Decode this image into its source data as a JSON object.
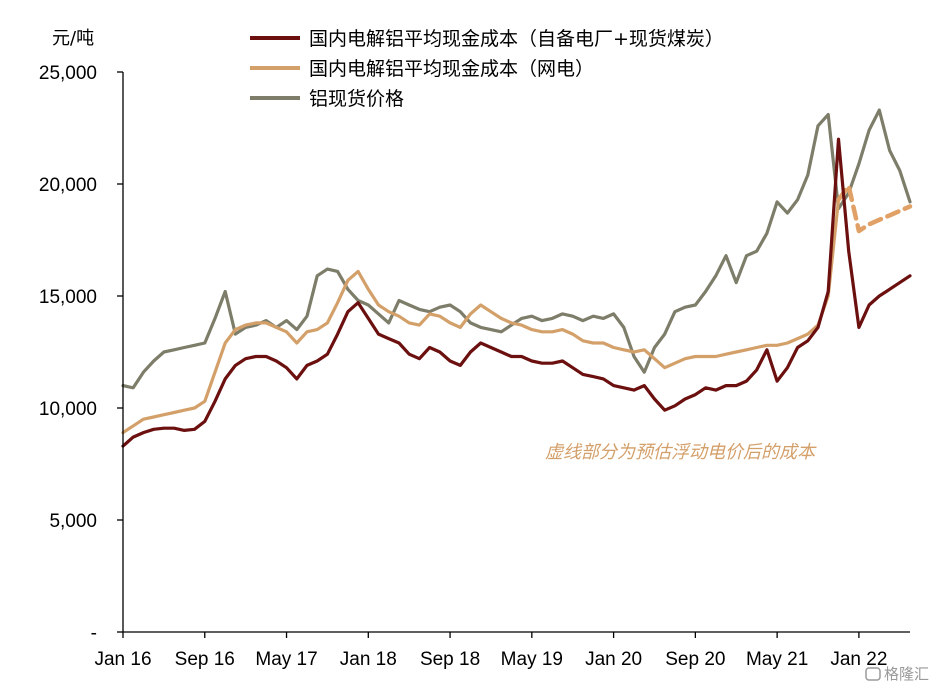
{
  "chart_data": {
    "type": "line",
    "ylabel": "元/吨",
    "ylim": [
      0,
      25000
    ],
    "yticks": [
      {
        "value": 0,
        "label": "-"
      },
      {
        "value": 5000,
        "label": "5,000"
      },
      {
        "value": 10000,
        "label": "10,000"
      },
      {
        "value": 15000,
        "label": "15,000"
      },
      {
        "value": 20000,
        "label": "20,000"
      },
      {
        "value": 25000,
        "label": "25,000"
      }
    ],
    "xrange": [
      "2016-01",
      "2022-06"
    ],
    "xticks": [
      {
        "date": "2016-01",
        "label": "Jan 16"
      },
      {
        "date": "2016-09",
        "label": "Sep 16"
      },
      {
        "date": "2017-05",
        "label": "May 17"
      },
      {
        "date": "2018-01",
        "label": "Jan 18"
      },
      {
        "date": "2018-09",
        "label": "Sep 18"
      },
      {
        "date": "2019-05",
        "label": "May 19"
      },
      {
        "date": "2020-01",
        "label": "Jan 20"
      },
      {
        "date": "2020-09",
        "label": "Sep 20"
      },
      {
        "date": "2021-05",
        "label": "May 21"
      },
      {
        "date": "2022-01",
        "label": "Jan 22"
      }
    ],
    "legend_position": "top",
    "grid": false,
    "annotation": "虚线部分为预估浮动电价后的成本",
    "series": [
      {
        "name": "国内电解铝平均现金成本（自备电厂+现货煤炭）",
        "color": "#6b0f0f",
        "style": "solid",
        "points": [
          [
            "2016-01",
            8300
          ],
          [
            "2016-02",
            8700
          ],
          [
            "2016-03",
            8900
          ],
          [
            "2016-04",
            9050
          ],
          [
            "2016-05",
            9100
          ],
          [
            "2016-06",
            9100
          ],
          [
            "2016-07",
            9000
          ],
          [
            "2016-08",
            9050
          ],
          [
            "2016-09",
            9400
          ],
          [
            "2016-10",
            10300
          ],
          [
            "2016-11",
            11300
          ],
          [
            "2016-12",
            11900
          ],
          [
            "2017-01",
            12200
          ],
          [
            "2017-02",
            12300
          ],
          [
            "2017-03",
            12300
          ],
          [
            "2017-04",
            12100
          ],
          [
            "2017-05",
            11800
          ],
          [
            "2017-06",
            11300
          ],
          [
            "2017-07",
            11900
          ],
          [
            "2017-08",
            12100
          ],
          [
            "2017-09",
            12400
          ],
          [
            "2017-10",
            13300
          ],
          [
            "2017-11",
            14300
          ],
          [
            "2017-12",
            14700
          ],
          [
            "2018-01",
            14000
          ],
          [
            "2018-02",
            13300
          ],
          [
            "2018-03",
            13100
          ],
          [
            "2018-04",
            12900
          ],
          [
            "2018-05",
            12400
          ],
          [
            "2018-06",
            12200
          ],
          [
            "2018-07",
            12700
          ],
          [
            "2018-08",
            12500
          ],
          [
            "2018-09",
            12100
          ],
          [
            "2018-10",
            11900
          ],
          [
            "2018-11",
            12500
          ],
          [
            "2018-12",
            12900
          ],
          [
            "2019-01",
            12700
          ],
          [
            "2019-02",
            12500
          ],
          [
            "2019-03",
            12300
          ],
          [
            "2019-04",
            12300
          ],
          [
            "2019-05",
            12100
          ],
          [
            "2019-06",
            12000
          ],
          [
            "2019-07",
            12000
          ],
          [
            "2019-08",
            12100
          ],
          [
            "2019-09",
            11800
          ],
          [
            "2019-10",
            11500
          ],
          [
            "2019-11",
            11400
          ],
          [
            "2019-12",
            11300
          ],
          [
            "2020-01",
            11000
          ],
          [
            "2020-02",
            10900
          ],
          [
            "2020-03",
            10800
          ],
          [
            "2020-04",
            11000
          ],
          [
            "2020-05",
            10400
          ],
          [
            "2020-06",
            9900
          ],
          [
            "2020-07",
            10100
          ],
          [
            "2020-08",
            10400
          ],
          [
            "2020-09",
            10600
          ],
          [
            "2020-10",
            10900
          ],
          [
            "2020-11",
            10800
          ],
          [
            "2020-12",
            11000
          ],
          [
            "2021-01",
            11000
          ],
          [
            "2021-02",
            11200
          ],
          [
            "2021-03",
            11700
          ],
          [
            "2021-04",
            12600
          ],
          [
            "2021-05",
            11200
          ],
          [
            "2021-06",
            11800
          ],
          [
            "2021-07",
            12700
          ],
          [
            "2021-08",
            13000
          ],
          [
            "2021-09",
            13600
          ],
          [
            "2021-10",
            15200
          ],
          [
            "2021-11",
            22000
          ],
          [
            "2021-12",
            17000
          ],
          [
            "2022-01",
            13600
          ],
          [
            "2022-02",
            14600
          ],
          [
            "2022-03",
            15000
          ],
          [
            "2022-04",
            15300
          ],
          [
            "2022-05",
            15600
          ],
          [
            "2022-06",
            15900
          ]
        ]
      },
      {
        "name": "国内电解铝平均现金成本（网电）",
        "color": "#d4a06a",
        "style": "solid",
        "points": [
          [
            "2016-01",
            8900
          ],
          [
            "2016-02",
            9200
          ],
          [
            "2016-03",
            9500
          ],
          [
            "2016-04",
            9600
          ],
          [
            "2016-05",
            9700
          ],
          [
            "2016-06",
            9800
          ],
          [
            "2016-07",
            9900
          ],
          [
            "2016-08",
            10000
          ],
          [
            "2016-09",
            10300
          ],
          [
            "2016-10",
            11600
          ],
          [
            "2016-11",
            12900
          ],
          [
            "2016-12",
            13500
          ],
          [
            "2017-01",
            13700
          ],
          [
            "2017-02",
            13800
          ],
          [
            "2017-03",
            13800
          ],
          [
            "2017-04",
            13600
          ],
          [
            "2017-05",
            13400
          ],
          [
            "2017-06",
            12900
          ],
          [
            "2017-07",
            13400
          ],
          [
            "2017-08",
            13500
          ],
          [
            "2017-09",
            13800
          ],
          [
            "2017-10",
            14700
          ],
          [
            "2017-11",
            15700
          ],
          [
            "2017-12",
            16100
          ],
          [
            "2018-01",
            15300
          ],
          [
            "2018-02",
            14600
          ],
          [
            "2018-03",
            14300
          ],
          [
            "2018-04",
            14100
          ],
          [
            "2018-05",
            13800
          ],
          [
            "2018-06",
            13700
          ],
          [
            "2018-07",
            14200
          ],
          [
            "2018-08",
            14100
          ],
          [
            "2018-09",
            13800
          ],
          [
            "2018-10",
            13600
          ],
          [
            "2018-11",
            14200
          ],
          [
            "2018-12",
            14600
          ],
          [
            "2019-01",
            14300
          ],
          [
            "2019-02",
            14000
          ],
          [
            "2019-03",
            13800
          ],
          [
            "2019-04",
            13700
          ],
          [
            "2019-05",
            13500
          ],
          [
            "2019-06",
            13400
          ],
          [
            "2019-07",
            13400
          ],
          [
            "2019-08",
            13500
          ],
          [
            "2019-09",
            13300
          ],
          [
            "2019-10",
            13000
          ],
          [
            "2019-11",
            12900
          ],
          [
            "2019-12",
            12900
          ],
          [
            "2020-01",
            12700
          ],
          [
            "2020-02",
            12600
          ],
          [
            "2020-03",
            12500
          ],
          [
            "2020-04",
            12600
          ],
          [
            "2020-05",
            12200
          ],
          [
            "2020-06",
            11800
          ],
          [
            "2020-07",
            12000
          ],
          [
            "2020-08",
            12200
          ],
          [
            "2020-09",
            12300
          ],
          [
            "2020-10",
            12300
          ],
          [
            "2020-11",
            12300
          ],
          [
            "2020-12",
            12400
          ],
          [
            "2021-01",
            12500
          ],
          [
            "2021-02",
            12600
          ],
          [
            "2021-03",
            12700
          ],
          [
            "2021-04",
            12800
          ],
          [
            "2021-05",
            12800
          ],
          [
            "2021-06",
            12900
          ],
          [
            "2021-07",
            13100
          ],
          [
            "2021-08",
            13300
          ],
          [
            "2021-09",
            13700
          ],
          [
            "2021-10",
            15000
          ],
          [
            "2021-11",
            19300
          ]
        ]
      },
      {
        "name": "",
        "color": "#e0a066",
        "style": "dashed",
        "points": [
          [
            "2021-11",
            19300
          ],
          [
            "2021-12",
            19900
          ],
          [
            "2022-01",
            17900
          ],
          [
            "2022-02",
            18200
          ],
          [
            "2022-03",
            18400
          ],
          [
            "2022-04",
            18600
          ],
          [
            "2022-05",
            18800
          ],
          [
            "2022-06",
            19000
          ]
        ]
      },
      {
        "name": "铝现货价格",
        "color": "#7d7d6a",
        "style": "solid",
        "points": [
          [
            "2016-01",
            11000
          ],
          [
            "2016-02",
            10900
          ],
          [
            "2016-03",
            11600
          ],
          [
            "2016-04",
            12100
          ],
          [
            "2016-05",
            12500
          ],
          [
            "2016-06",
            12600
          ],
          [
            "2016-07",
            12700
          ],
          [
            "2016-08",
            12800
          ],
          [
            "2016-09",
            12900
          ],
          [
            "2016-10",
            14000
          ],
          [
            "2016-11",
            15200
          ],
          [
            "2016-12",
            13300
          ],
          [
            "2017-01",
            13600
          ],
          [
            "2017-02",
            13700
          ],
          [
            "2017-03",
            13900
          ],
          [
            "2017-04",
            13600
          ],
          [
            "2017-05",
            13900
          ],
          [
            "2017-06",
            13500
          ],
          [
            "2017-07",
            14100
          ],
          [
            "2017-08",
            15900
          ],
          [
            "2017-09",
            16200
          ],
          [
            "2017-10",
            16100
          ],
          [
            "2017-11",
            15300
          ],
          [
            "2017-12",
            14800
          ],
          [
            "2018-01",
            14600
          ],
          [
            "2018-02",
            14200
          ],
          [
            "2018-03",
            13800
          ],
          [
            "2018-04",
            14800
          ],
          [
            "2018-05",
            14600
          ],
          [
            "2018-06",
            14400
          ],
          [
            "2018-07",
            14300
          ],
          [
            "2018-08",
            14500
          ],
          [
            "2018-09",
            14600
          ],
          [
            "2018-10",
            14300
          ],
          [
            "2018-11",
            13800
          ],
          [
            "2018-12",
            13600
          ],
          [
            "2019-01",
            13500
          ],
          [
            "2019-02",
            13400
          ],
          [
            "2019-03",
            13700
          ],
          [
            "2019-04",
            14000
          ],
          [
            "2019-05",
            14100
          ],
          [
            "2019-06",
            13900
          ],
          [
            "2019-07",
            14000
          ],
          [
            "2019-08",
            14200
          ],
          [
            "2019-09",
            14100
          ],
          [
            "2019-10",
            13900
          ],
          [
            "2019-11",
            14100
          ],
          [
            "2019-12",
            14000
          ],
          [
            "2020-01",
            14200
          ],
          [
            "2020-02",
            13600
          ],
          [
            "2020-03",
            12300
          ],
          [
            "2020-04",
            11600
          ],
          [
            "2020-05",
            12700
          ],
          [
            "2020-06",
            13300
          ],
          [
            "2020-07",
            14300
          ],
          [
            "2020-08",
            14500
          ],
          [
            "2020-09",
            14600
          ],
          [
            "2020-10",
            15200
          ],
          [
            "2020-11",
            15900
          ],
          [
            "2020-12",
            16800
          ],
          [
            "2021-01",
            15600
          ],
          [
            "2021-02",
            16800
          ],
          [
            "2021-03",
            17000
          ],
          [
            "2021-04",
            17800
          ],
          [
            "2021-05",
            19200
          ],
          [
            "2021-06",
            18700
          ],
          [
            "2021-07",
            19300
          ],
          [
            "2021-08",
            20400
          ],
          [
            "2021-09",
            22600
          ],
          [
            "2021-10",
            23100
          ],
          [
            "2021-11",
            18900
          ],
          [
            "2021-12",
            19600
          ],
          [
            "2022-01",
            20900
          ],
          [
            "2022-02",
            22400
          ],
          [
            "2022-03",
            23300
          ],
          [
            "2022-04",
            21500
          ],
          [
            "2022-05",
            20600
          ],
          [
            "2022-06",
            19200
          ]
        ]
      }
    ]
  },
  "watermark": "格隆汇"
}
